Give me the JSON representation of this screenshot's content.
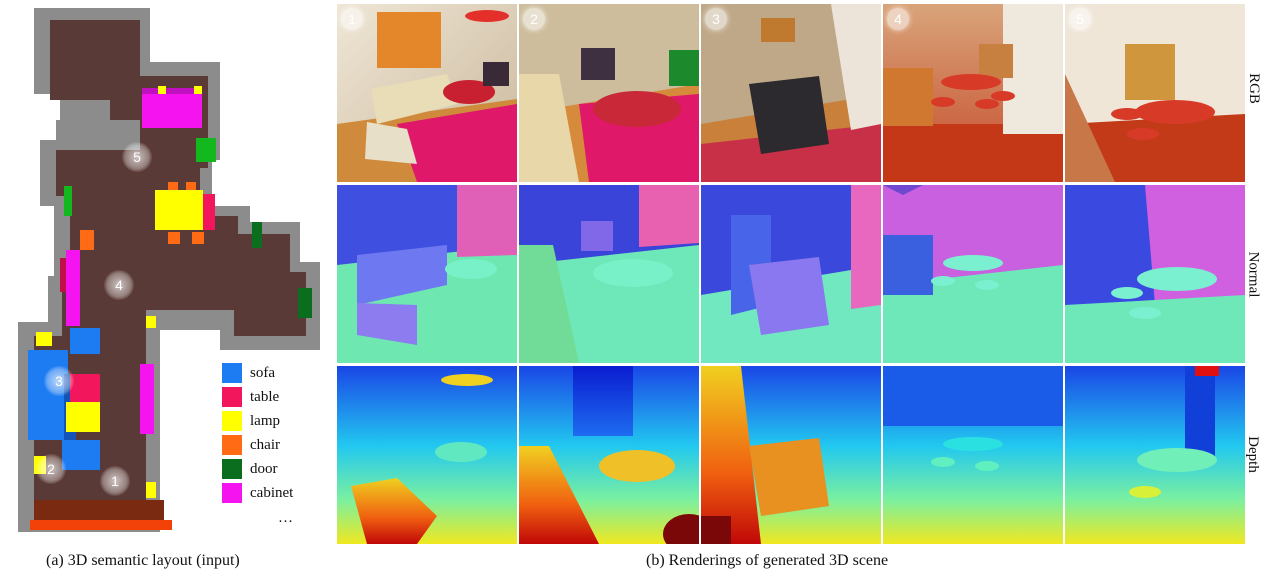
{
  "legend": {
    "items": [
      {
        "label": "sofa",
        "color": "#1e7cf2"
      },
      {
        "label": "table",
        "color": "#f2165c"
      },
      {
        "label": "lamp",
        "color": "#ffff00"
      },
      {
        "label": "chair",
        "color": "#ff6a14"
      },
      {
        "label": "door",
        "color": "#0a6e1e"
      },
      {
        "label": "cabinet",
        "color": "#f514f0"
      }
    ],
    "more": "…"
  },
  "layout_markers": [
    "1",
    "2",
    "3",
    "4",
    "5"
  ],
  "views": [
    "1",
    "2",
    "3",
    "4",
    "5"
  ],
  "rows": [
    "RGB",
    "Normal",
    "Depth"
  ],
  "captions": {
    "left": "(a) 3D semantic layout (input)",
    "right": "(b) Renderings of generated 3D scene"
  }
}
